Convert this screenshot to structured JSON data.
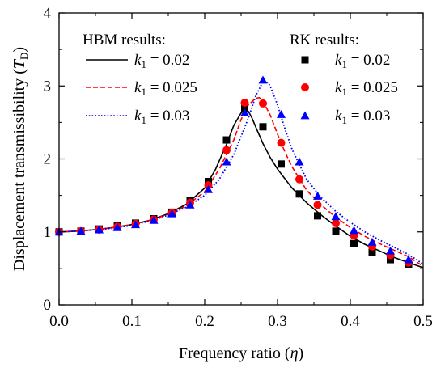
{
  "chart_data": {
    "type": "line",
    "xlabel": "Frequency ratio (η)",
    "ylabel": "Displacement transmissibility (T_D)",
    "ylabel_parts": {
      "main": "Displacement transmissibility (",
      "symbol": "T",
      "sub": "D",
      "close": ")"
    },
    "xlabel_parts": {
      "main": "Frequency ratio (",
      "symbol": "η",
      "close": ")"
    },
    "xlim": [
      0.0,
      0.5
    ],
    "ylim": [
      0,
      4
    ],
    "x_ticks": [
      0.0,
      0.1,
      0.2,
      0.3,
      0.4,
      0.5
    ],
    "x_tick_labels": [
      "0.0",
      "0.1",
      "0.2",
      "0.3",
      "0.4",
      "0.5"
    ],
    "y_ticks": [
      0,
      1,
      2,
      3,
      4
    ],
    "y_tick_labels": [
      "0",
      "1",
      "2",
      "3",
      "4"
    ],
    "grid": false,
    "legend": {
      "left_title": "HBM results:",
      "right_title": "RK results:",
      "labels": [
        "k1 = 0.02",
        "k1 = 0.025",
        "k1 = 0.03"
      ],
      "symbol_k": "k",
      "sub_1": "1",
      "values": [
        "= 0.02",
        "= 0.025",
        "= 0.03"
      ]
    },
    "series": [
      {
        "name": "k1 = 0.02",
        "method": "HBM",
        "color": "#000000",
        "style": "solid",
        "x": [
          0.0,
          0.025,
          0.05,
          0.075,
          0.1,
          0.125,
          0.15,
          0.175,
          0.2,
          0.215,
          0.23,
          0.24,
          0.25,
          0.255,
          0.26,
          0.265,
          0.27,
          0.28,
          0.29,
          0.3,
          0.32,
          0.34,
          0.36,
          0.38,
          0.4,
          0.42,
          0.44,
          0.46,
          0.48,
          0.5
        ],
        "y": [
          1.0,
          1.01,
          1.03,
          1.06,
          1.1,
          1.16,
          1.25,
          1.38,
          1.6,
          1.86,
          2.2,
          2.46,
          2.63,
          2.67,
          2.65,
          2.56,
          2.44,
          2.21,
          2.02,
          1.86,
          1.6,
          1.4,
          1.23,
          1.08,
          0.94,
          0.83,
          0.74,
          0.65,
          0.58,
          0.51
        ]
      },
      {
        "name": "k1 = 0.025",
        "method": "HBM",
        "color": "#ff0000",
        "style": "dashed",
        "x": [
          0.0,
          0.025,
          0.05,
          0.075,
          0.1,
          0.125,
          0.15,
          0.175,
          0.2,
          0.22,
          0.24,
          0.25,
          0.26,
          0.27,
          0.275,
          0.28,
          0.29,
          0.3,
          0.31,
          0.32,
          0.34,
          0.36,
          0.38,
          0.4,
          0.42,
          0.44,
          0.46,
          0.48,
          0.5
        ],
        "y": [
          1.0,
          1.01,
          1.03,
          1.06,
          1.1,
          1.16,
          1.24,
          1.36,
          1.55,
          1.86,
          2.26,
          2.54,
          2.74,
          2.83,
          2.84,
          2.79,
          2.6,
          2.34,
          2.1,
          1.89,
          1.57,
          1.37,
          1.2,
          1.06,
          0.94,
          0.84,
          0.75,
          0.66,
          0.53
        ]
      },
      {
        "name": "k1 = 0.03",
        "method": "HBM",
        "color": "#0000ff",
        "style": "dotted",
        "x": [
          0.0,
          0.025,
          0.05,
          0.075,
          0.1,
          0.125,
          0.15,
          0.175,
          0.2,
          0.22,
          0.24,
          0.26,
          0.27,
          0.28,
          0.285,
          0.29,
          0.3,
          0.31,
          0.32,
          0.34,
          0.36,
          0.38,
          0.4,
          0.42,
          0.44,
          0.46,
          0.48,
          0.5
        ],
        "y": [
          1.0,
          1.01,
          1.03,
          1.05,
          1.09,
          1.15,
          1.23,
          1.34,
          1.5,
          1.72,
          2.06,
          2.56,
          2.86,
          3.06,
          3.06,
          3.0,
          2.74,
          2.42,
          2.13,
          1.72,
          1.47,
          1.28,
          1.13,
          1.0,
          0.89,
          0.79,
          0.69,
          0.56
        ]
      },
      {
        "name": "k1 = 0.02",
        "method": "RK",
        "color": "#000000",
        "marker": "square",
        "x": [
          0.0,
          0.03,
          0.055,
          0.08,
          0.105,
          0.13,
          0.155,
          0.18,
          0.205,
          0.23,
          0.255,
          0.28,
          0.305,
          0.33,
          0.355,
          0.38,
          0.405,
          0.43,
          0.455,
          0.48
        ],
        "y": [
          1.0,
          1.01,
          1.04,
          1.08,
          1.12,
          1.18,
          1.27,
          1.43,
          1.69,
          2.26,
          2.69,
          2.44,
          1.93,
          1.52,
          1.22,
          1.01,
          0.84,
          0.72,
          0.62,
          0.55
        ]
      },
      {
        "name": "k1 = 0.025",
        "method": "RK",
        "color": "#ff0000",
        "marker": "circle",
        "x": [
          0.0,
          0.03,
          0.055,
          0.08,
          0.105,
          0.13,
          0.155,
          0.18,
          0.205,
          0.23,
          0.255,
          0.28,
          0.305,
          0.33,
          0.355,
          0.38,
          0.405,
          0.43,
          0.455,
          0.48
        ],
        "y": [
          1.0,
          1.01,
          1.03,
          1.07,
          1.11,
          1.17,
          1.26,
          1.4,
          1.64,
          2.12,
          2.77,
          2.76,
          2.22,
          1.72,
          1.37,
          1.12,
          0.95,
          0.8,
          0.68,
          0.58
        ]
      },
      {
        "name": "k1 = 0.03",
        "method": "RK",
        "color": "#0000ff",
        "marker": "triangle",
        "x": [
          0.0,
          0.03,
          0.055,
          0.08,
          0.105,
          0.13,
          0.155,
          0.18,
          0.205,
          0.23,
          0.255,
          0.28,
          0.305,
          0.33,
          0.355,
          0.38,
          0.405,
          0.43,
          0.455,
          0.48
        ],
        "y": [
          1.0,
          1.01,
          1.03,
          1.06,
          1.1,
          1.16,
          1.25,
          1.37,
          1.58,
          1.96,
          2.63,
          3.08,
          2.61,
          1.96,
          1.49,
          1.21,
          1.02,
          0.86,
          0.74,
          0.62
        ]
      }
    ]
  }
}
